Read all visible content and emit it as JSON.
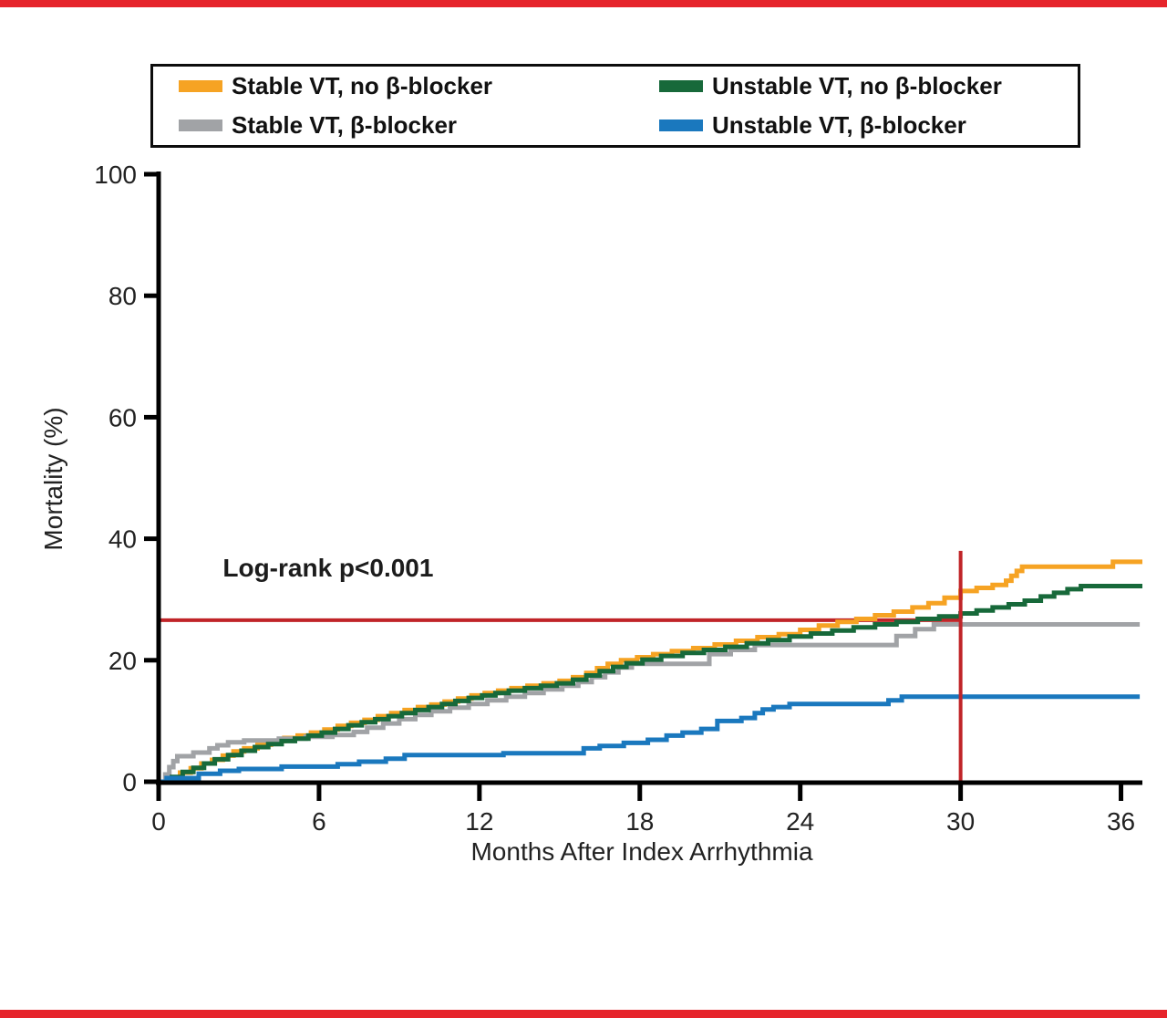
{
  "page": {
    "top_border_color": "#E6242B",
    "bottom_border_color": "#E6242B",
    "background": "#ffffff"
  },
  "legend": {
    "items": [
      {
        "label": "Stable VT, no β-blocker",
        "color": "#F6A323",
        "series": "stable_vt_no_bblocker"
      },
      {
        "label": "Unstable VT, no β-blocker",
        "color": "#17693A",
        "series": "unstable_vt_no_bblocker"
      },
      {
        "label": "Stable VT, β-blocker",
        "color": "#A1A3A6",
        "series": "stable_vt_bblocker"
      },
      {
        "label": "Unstable VT, β-blocker",
        "color": "#1A78BE",
        "series": "unstable_vt_bblocker"
      }
    ]
  },
  "annotation": {
    "text": "Log-rank p<0.001"
  },
  "chart_data": {
    "type": "line",
    "subtype": "step-after (Kaplan-Meier cumulative mortality)",
    "title": "",
    "xlabel": "Months After Index Arrhythmia",
    "ylabel": "Mortality (%)",
    "xlim": [
      0,
      36.8
    ],
    "ylim": [
      0,
      100
    ],
    "xticks": [
      0,
      6,
      12,
      18,
      24,
      30,
      36
    ],
    "yticks": [
      0,
      20,
      40,
      60,
      80,
      100
    ],
    "grid": false,
    "legend_position": "boxed, above plot",
    "axis_color": "#000000",
    "series": [
      {
        "name": "Stable VT, no β-blocker",
        "key": "stable_vt_no_bblocker",
        "color": "#F6A323",
        "points": [
          [
            0,
            0
          ],
          [
            0.4,
            0.7
          ],
          [
            0.8,
            1.5
          ],
          [
            1.2,
            2.2
          ],
          [
            1.6,
            3.0
          ],
          [
            2.0,
            3.6
          ],
          [
            2.4,
            4.3
          ],
          [
            2.8,
            5.0
          ],
          [
            3.2,
            5.5
          ],
          [
            3.7,
            6.1
          ],
          [
            4.2,
            6.7
          ],
          [
            4.7,
            7.2
          ],
          [
            5.2,
            7.6
          ],
          [
            5.7,
            8.1
          ],
          [
            6.2,
            8.6
          ],
          [
            6.7,
            9.2
          ],
          [
            7.2,
            9.7
          ],
          [
            7.7,
            10.2
          ],
          [
            8.2,
            10.8
          ],
          [
            8.7,
            11.3
          ],
          [
            9.2,
            11.8
          ],
          [
            9.7,
            12.3
          ],
          [
            10.2,
            12.7
          ],
          [
            10.7,
            13.2
          ],
          [
            11.2,
            13.7
          ],
          [
            11.7,
            14.2
          ],
          [
            12.2,
            14.6
          ],
          [
            12.7,
            15.0
          ],
          [
            13.2,
            15.4
          ],
          [
            13.8,
            15.8
          ],
          [
            14.4,
            16.2
          ],
          [
            15.0,
            16.6
          ],
          [
            15.5,
            17.2
          ],
          [
            16.0,
            17.9
          ],
          [
            16.4,
            18.7
          ],
          [
            16.8,
            19.4
          ],
          [
            17.3,
            20.0
          ],
          [
            17.9,
            20.5
          ],
          [
            18.5,
            21.0
          ],
          [
            19.2,
            21.5
          ],
          [
            20.0,
            22.0
          ],
          [
            20.8,
            22.6
          ],
          [
            21.6,
            23.2
          ],
          [
            22.4,
            23.8
          ],
          [
            23.2,
            24.3
          ],
          [
            24.0,
            25.0
          ],
          [
            24.7,
            25.7
          ],
          [
            25.4,
            26.3
          ],
          [
            26.1,
            26.8
          ],
          [
            26.8,
            27.4
          ],
          [
            27.5,
            28.0
          ],
          [
            28.2,
            28.7
          ],
          [
            28.8,
            29.4
          ],
          [
            29.4,
            30.3
          ],
          [
            30.0,
            31.4
          ],
          [
            30.6,
            31.9
          ],
          [
            31.2,
            32.4
          ],
          [
            31.7,
            33.1
          ],
          [
            31.9,
            33.9
          ],
          [
            32.1,
            34.7
          ],
          [
            32.3,
            35.4
          ],
          [
            35.7,
            36.2
          ],
          [
            36.8,
            36.2
          ]
        ]
      },
      {
        "name": "Stable VT, β-blocker",
        "key": "stable_vt_bblocker",
        "color": "#A1A3A6",
        "points": [
          [
            0,
            0
          ],
          [
            0.25,
            1.2
          ],
          [
            0.4,
            2.4
          ],
          [
            0.55,
            3.4
          ],
          [
            0.7,
            4.2
          ],
          [
            1.3,
            4.8
          ],
          [
            1.9,
            5.5
          ],
          [
            2.2,
            6.0
          ],
          [
            2.6,
            6.5
          ],
          [
            3.2,
            6.8
          ],
          [
            4.5,
            7.1
          ],
          [
            5.5,
            7.4
          ],
          [
            6.5,
            7.7
          ],
          [
            7.3,
            8.2
          ],
          [
            7.8,
            8.9
          ],
          [
            8.4,
            9.6
          ],
          [
            9.0,
            10.3
          ],
          [
            9.6,
            11.0
          ],
          [
            10.2,
            11.6
          ],
          [
            10.9,
            12.2
          ],
          [
            11.6,
            12.8
          ],
          [
            12.3,
            13.4
          ],
          [
            13.0,
            14.0
          ],
          [
            13.7,
            14.6
          ],
          [
            14.4,
            15.2
          ],
          [
            15.1,
            15.8
          ],
          [
            15.7,
            16.4
          ],
          [
            16.2,
            17.2
          ],
          [
            16.7,
            18.0
          ],
          [
            17.2,
            18.8
          ],
          [
            17.7,
            19.4
          ],
          [
            20.6,
            21.0
          ],
          [
            21.4,
            21.7
          ],
          [
            22.3,
            22.5
          ],
          [
            27.6,
            24.0
          ],
          [
            28.3,
            25.1
          ],
          [
            29.0,
            25.9
          ],
          [
            36.7,
            25.9
          ]
        ]
      },
      {
        "name": "Unstable VT, no β-blocker",
        "key": "unstable_vt_no_bblocker",
        "color": "#17693A",
        "points": [
          [
            0,
            0
          ],
          [
            0.5,
            0.8
          ],
          [
            0.9,
            1.6
          ],
          [
            1.3,
            2.3
          ],
          [
            1.7,
            3.0
          ],
          [
            2.1,
            3.7
          ],
          [
            2.6,
            4.4
          ],
          [
            3.1,
            5.1
          ],
          [
            3.6,
            5.7
          ],
          [
            4.1,
            6.2
          ],
          [
            4.6,
            6.7
          ],
          [
            5.1,
            7.1
          ],
          [
            5.6,
            7.6
          ],
          [
            6.1,
            8.1
          ],
          [
            6.6,
            8.7
          ],
          [
            7.1,
            9.3
          ],
          [
            7.6,
            9.8
          ],
          [
            8.1,
            10.3
          ],
          [
            8.6,
            10.8
          ],
          [
            9.1,
            11.3
          ],
          [
            9.6,
            11.8
          ],
          [
            10.1,
            12.3
          ],
          [
            10.6,
            12.8
          ],
          [
            11.1,
            13.3
          ],
          [
            11.6,
            13.8
          ],
          [
            12.1,
            14.2
          ],
          [
            12.6,
            14.6
          ],
          [
            13.1,
            15.0
          ],
          [
            13.7,
            15.4
          ],
          [
            14.3,
            15.8
          ],
          [
            14.9,
            16.2
          ],
          [
            15.5,
            16.8
          ],
          [
            16.0,
            17.5
          ],
          [
            16.5,
            18.2
          ],
          [
            17.0,
            18.9
          ],
          [
            17.5,
            19.5
          ],
          [
            18.1,
            20.1
          ],
          [
            18.8,
            20.7
          ],
          [
            19.6,
            21.2
          ],
          [
            20.4,
            21.7
          ],
          [
            21.2,
            22.2
          ],
          [
            22.0,
            22.8
          ],
          [
            22.8,
            23.3
          ],
          [
            23.6,
            23.9
          ],
          [
            24.4,
            24.4
          ],
          [
            25.2,
            24.9
          ],
          [
            26.0,
            25.4
          ],
          [
            26.8,
            25.9
          ],
          [
            27.6,
            26.3
          ],
          [
            28.4,
            26.8
          ],
          [
            29.2,
            27.2
          ],
          [
            30.0,
            27.7
          ],
          [
            30.6,
            28.2
          ],
          [
            31.2,
            28.7
          ],
          [
            31.8,
            29.2
          ],
          [
            32.4,
            29.8
          ],
          [
            33.0,
            30.5
          ],
          [
            33.5,
            31.1
          ],
          [
            34.0,
            31.7
          ],
          [
            34.5,
            32.2
          ],
          [
            36.8,
            32.2
          ]
        ]
      },
      {
        "name": "Unstable VT, β-blocker",
        "key": "unstable_vt_bblocker",
        "color": "#1A78BE",
        "points": [
          [
            0,
            0
          ],
          [
            0.3,
            0.6
          ],
          [
            1.5,
            1.3
          ],
          [
            2.3,
            1.8
          ],
          [
            3.0,
            2.1
          ],
          [
            4.6,
            2.5
          ],
          [
            6.7,
            2.9
          ],
          [
            7.5,
            3.3
          ],
          [
            8.5,
            3.8
          ],
          [
            9.2,
            4.4
          ],
          [
            12.9,
            4.7
          ],
          [
            15.9,
            5.5
          ],
          [
            16.5,
            5.9
          ],
          [
            17.4,
            6.4
          ],
          [
            18.3,
            6.9
          ],
          [
            19.0,
            7.6
          ],
          [
            19.6,
            8.1
          ],
          [
            20.3,
            8.7
          ],
          [
            20.9,
            10.0
          ],
          [
            21.8,
            10.5
          ],
          [
            22.3,
            11.3
          ],
          [
            22.6,
            11.9
          ],
          [
            23.0,
            12.3
          ],
          [
            23.6,
            12.8
          ],
          [
            27.3,
            13.4
          ],
          [
            27.8,
            14.0
          ],
          [
            36.7,
            14.0
          ]
        ]
      }
    ],
    "reference_lines": {
      "horizontal": {
        "y": 26.6,
        "x_from": 0,
        "x_to": 30,
        "color": "#C02428",
        "width": 4
      },
      "vertical": {
        "x": 30,
        "y_from": -1.8,
        "y_to": 38,
        "color": "#C02428",
        "width": 4
      }
    },
    "annotations": [
      {
        "text": "Log-rank p<0.001",
        "x": 2.4,
        "y": 34,
        "bold": true
      }
    ]
  }
}
